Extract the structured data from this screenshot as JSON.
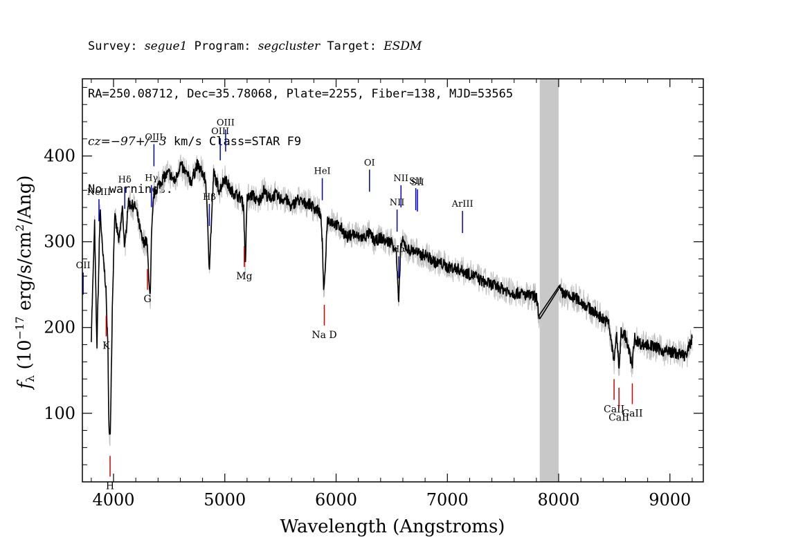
{
  "header": {
    "line1": {
      "survey_label": "Survey: ",
      "survey": "segue1",
      "program_label": " Program: ",
      "program": "segcluster",
      "target_label": " Target: ",
      "target": "ESDM"
    },
    "line2": "RA=250.08712, Dec=35.78068, Plate=2255, Fiber=138, MJD=53565",
    "line3": {
      "cz": "cz=−97+/−3",
      "rest": " km/s Class=STAR F9"
    },
    "line4": "No warnings."
  },
  "chart_data": {
    "type": "line",
    "xlabel": "Wavelength (Angstroms)",
    "ylabel": "f_λ (10^-17 erg/s/cm^2/Ang)",
    "xlim": [
      3720,
      9300
    ],
    "ylim": [
      20,
      490
    ],
    "xticks": [
      4000,
      5000,
      6000,
      7000,
      8000,
      9000
    ],
    "yticks": [
      100,
      200,
      300,
      400
    ],
    "masked_band": [
      7830,
      8000
    ],
    "series": [
      {
        "x": [
          3800,
          3830,
          3850,
          3880,
          3900,
          3930,
          3950,
          3960,
          3970,
          3990,
          4010,
          4050,
          4080,
          4101,
          4130,
          4200,
          4260,
          4300,
          4330,
          4340,
          4360,
          4380,
          4400,
          4450,
          4500,
          4550,
          4600,
          4650,
          4700,
          4750,
          4800,
          4830,
          4861,
          4900,
          4950,
          5000,
          5050,
          5100,
          5150,
          5170,
          5184,
          5200,
          5250,
          5300,
          5350,
          5400,
          5450,
          5500,
          5550,
          5600,
          5650,
          5700,
          5750,
          5800,
          5850,
          5870,
          5890,
          5896,
          5920,
          5950,
          6000,
          6050,
          6100,
          6150,
          6200,
          6250,
          6300,
          6350,
          6400,
          6450,
          6500,
          6540,
          6563,
          6580,
          6600,
          6650,
          6700,
          6750,
          6800,
          6850,
          6900,
          6950,
          7000,
          7050,
          7100,
          7150,
          7200,
          7250,
          7300,
          7350,
          7400,
          7450,
          7500,
          7550,
          7600,
          7650,
          7700,
          7750,
          7800,
          7830,
          8000,
          8030,
          8050,
          8100,
          8150,
          8200,
          8250,
          8300,
          8350,
          8400,
          8450,
          8498,
          8520,
          8542,
          8560,
          8600,
          8662,
          8680,
          8700,
          8750,
          8800,
          8850,
          8900,
          8950,
          9000,
          9050,
          9100,
          9150,
          9200
        ],
        "values": [
          190,
          320,
          175,
          340,
          290,
          250,
          170,
          75,
          70,
          230,
          330,
          300,
          340,
          290,
          345,
          340,
          300,
          300,
          230,
          300,
          355,
          360,
          365,
          375,
          380,
          370,
          390,
          380,
          370,
          390,
          380,
          370,
          270,
          380,
          360,
          375,
          360,
          355,
          350,
          340,
          270,
          350,
          355,
          345,
          360,
          350,
          355,
          350,
          350,
          340,
          350,
          345,
          345,
          340,
          335,
          320,
          240,
          250,
          325,
          325,
          320,
          315,
          305,
          310,
          305,
          305,
          310,
          300,
          305,
          300,
          300,
          290,
          225,
          295,
          300,
          290,
          290,
          285,
          285,
          280,
          275,
          275,
          270,
          270,
          268,
          265,
          262,
          260,
          255,
          252,
          250,
          248,
          245,
          242,
          240,
          240,
          238,
          237,
          235,
          210,
          245,
          240,
          240,
          235,
          235,
          230,
          225,
          220,
          215,
          210,
          205,
          160,
          195,
          150,
          195,
          190,
          155,
          188,
          185,
          180,
          180,
          178,
          175,
          172,
          172,
          170,
          168,
          168,
          188
        ]
      }
    ],
    "annotations_emission": [
      {
        "label": "OII",
        "x": 3727
      },
      {
        "label": "NeIII",
        "x": 3869
      },
      {
        "label": "Hδ",
        "x": 4101
      },
      {
        "label": "Hγ",
        "x": 4340
      },
      {
        "label": "OIII",
        "x": 4363
      },
      {
        "label": "Hβ",
        "x": 4861
      },
      {
        "label": "OIII",
        "x": 4959
      },
      {
        "label": "OIII",
        "x": 5007
      },
      {
        "label": "HeI",
        "x": 5876
      },
      {
        "label": "OI",
        "x": 6300
      },
      {
        "label": "NII",
        "x": 6548
      },
      {
        "label": "Hα",
        "x": 6563
      },
      {
        "label": "NII",
        "x": 6583
      },
      {
        "label": "SII",
        "x": 6716
      },
      {
        "label": "SII",
        "x": 6731
      },
      {
        "label": "ArIII",
        "x": 7136
      }
    ],
    "annotations_absorption": [
      {
        "label": "K",
        "x": 3934
      },
      {
        "label": "H",
        "x": 3969
      },
      {
        "label": "G",
        "x": 4305
      },
      {
        "label": "Mg",
        "x": 5175
      },
      {
        "label": "Na D",
        "x": 5894
      },
      {
        "label": "CaII",
        "x": 8498
      },
      {
        "label": "CaII",
        "x": 8542
      },
      {
        "label": "CaII",
        "x": 8662
      }
    ],
    "colors": {
      "flux": "#000000",
      "error": "#c0c0c0",
      "emission": "#0000cc",
      "absorption": "#cc0000",
      "band": "#c8c8c8"
    }
  }
}
